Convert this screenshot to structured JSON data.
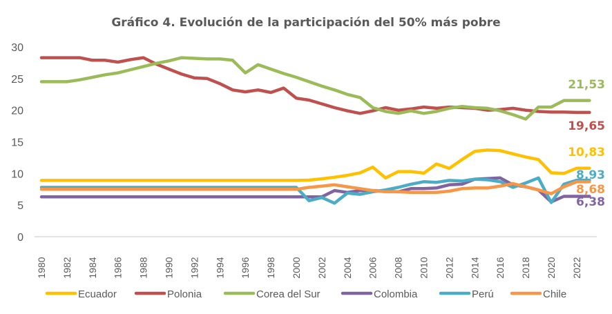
{
  "chart_data": {
    "type": "line",
    "title": "Gráfico 4. Evolución de la participación del 50% más pobre",
    "xlabel": "",
    "ylabel": "",
    "ylim": [
      0,
      30
    ],
    "yticks": [
      "0",
      "5",
      "10",
      "15",
      "20",
      "25",
      "30"
    ],
    "xticks": [
      "1980",
      "1982",
      "1984",
      "1986",
      "1988",
      "1990",
      "1992",
      "1994",
      "1996",
      "1998",
      "2000",
      "2002",
      "2004",
      "2006",
      "2008",
      "2010",
      "2012",
      "2014",
      "2016",
      "2018",
      "2020",
      "2022"
    ],
    "grid": false,
    "legend_position": "bottom",
    "x": [
      1980,
      1981,
      1982,
      1983,
      1984,
      1985,
      1986,
      1987,
      1988,
      1989,
      1990,
      1991,
      1992,
      1993,
      1994,
      1995,
      1996,
      1997,
      1998,
      1999,
      2000,
      2001,
      2002,
      2003,
      2004,
      2005,
      2006,
      2007,
      2008,
      2009,
      2010,
      2011,
      2012,
      2013,
      2014,
      2015,
      2016,
      2017,
      2018,
      2019,
      2020,
      2021,
      2022,
      2023
    ],
    "series": [
      {
        "name": "Ecuador",
        "color": "#FFC000",
        "end_label": "10,83",
        "values": [
          8.9,
          8.9,
          8.9,
          8.9,
          8.9,
          8.9,
          8.9,
          8.9,
          8.9,
          8.9,
          8.9,
          8.9,
          8.9,
          8.9,
          8.9,
          8.9,
          8.9,
          8.9,
          8.9,
          8.9,
          8.9,
          8.95,
          9.15,
          9.4,
          9.7,
          10.1,
          11.0,
          9.3,
          10.3,
          10.3,
          10.05,
          11.5,
          10.8,
          12.2,
          13.5,
          13.7,
          13.6,
          13.1,
          12.6,
          12.2,
          10.1,
          10.0,
          10.83,
          10.83
        ]
      },
      {
        "name": "Polonia",
        "color": "#C0504D",
        "end_label": "19,65",
        "values": [
          28.3,
          28.3,
          28.3,
          28.3,
          27.9,
          27.9,
          27.6,
          28.0,
          28.3,
          27.3,
          26.5,
          25.7,
          25.1,
          25.0,
          24.2,
          23.2,
          22.9,
          23.2,
          22.8,
          23.5,
          21.9,
          21.6,
          21.0,
          20.4,
          19.9,
          19.5,
          19.9,
          20.4,
          20.0,
          20.2,
          20.5,
          20.3,
          20.5,
          20.4,
          20.3,
          20.0,
          20.1,
          20.3,
          20.0,
          19.8,
          19.7,
          19.7,
          19.65,
          19.65
        ]
      },
      {
        "name": "Corea del Sur",
        "color": "#9BBB59",
        "end_label": "21,53",
        "values": [
          24.5,
          24.5,
          24.5,
          24.8,
          25.2,
          25.6,
          25.9,
          26.4,
          26.9,
          27.4,
          27.8,
          28.3,
          28.2,
          28.1,
          28.1,
          27.9,
          25.9,
          27.2,
          26.5,
          25.8,
          25.2,
          24.5,
          23.8,
          23.2,
          22.5,
          22.0,
          20.4,
          19.8,
          19.5,
          19.9,
          19.5,
          19.8,
          20.3,
          20.6,
          20.4,
          20.3,
          19.9,
          19.3,
          18.6,
          20.5,
          20.5,
          21.53,
          21.53,
          21.53
        ]
      },
      {
        "name": "Colombia",
        "color": "#8064A2",
        "end_label": "6,38",
        "values": [
          6.3,
          6.3,
          6.3,
          6.3,
          6.3,
          6.3,
          6.3,
          6.3,
          6.3,
          6.3,
          6.3,
          6.3,
          6.3,
          6.3,
          6.3,
          6.3,
          6.3,
          6.3,
          6.3,
          6.3,
          6.3,
          6.3,
          6.3,
          7.3,
          7.0,
          7.3,
          7.3,
          7.2,
          7.1,
          7.6,
          7.6,
          7.7,
          8.2,
          8.3,
          9.1,
          9.2,
          9.3,
          8.2,
          7.9,
          7.4,
          5.5,
          6.38,
          6.38,
          6.38
        ]
      },
      {
        "name": "Perú",
        "color": "#4BACC6",
        "end_label": "8,93",
        "values": [
          7.8,
          7.8,
          7.8,
          7.8,
          7.8,
          7.8,
          7.8,
          7.8,
          7.8,
          7.8,
          7.8,
          7.8,
          7.8,
          7.8,
          7.8,
          7.8,
          7.8,
          7.8,
          7.8,
          7.8,
          7.8,
          5.7,
          6.2,
          5.3,
          6.9,
          6.7,
          7.1,
          7.4,
          7.8,
          8.3,
          8.7,
          8.6,
          8.9,
          8.8,
          9.1,
          9.0,
          8.7,
          7.8,
          8.5,
          9.3,
          5.4,
          8.3,
          8.93,
          8.93
        ]
      },
      {
        "name": "Chile",
        "color": "#F79646",
        "end_label": "8,68",
        "values": [
          7.5,
          7.5,
          7.5,
          7.5,
          7.5,
          7.5,
          7.5,
          7.5,
          7.5,
          7.5,
          7.5,
          7.5,
          7.5,
          7.5,
          7.5,
          7.5,
          7.5,
          7.5,
          7.5,
          7.5,
          7.5,
          7.8,
          8.0,
          8.2,
          7.9,
          7.6,
          7.3,
          7.1,
          7.1,
          7.0,
          7.0,
          7.0,
          7.2,
          7.6,
          7.7,
          7.7,
          8.0,
          8.4,
          7.9,
          7.4,
          6.8,
          7.9,
          8.68,
          8.68
        ]
      }
    ]
  }
}
